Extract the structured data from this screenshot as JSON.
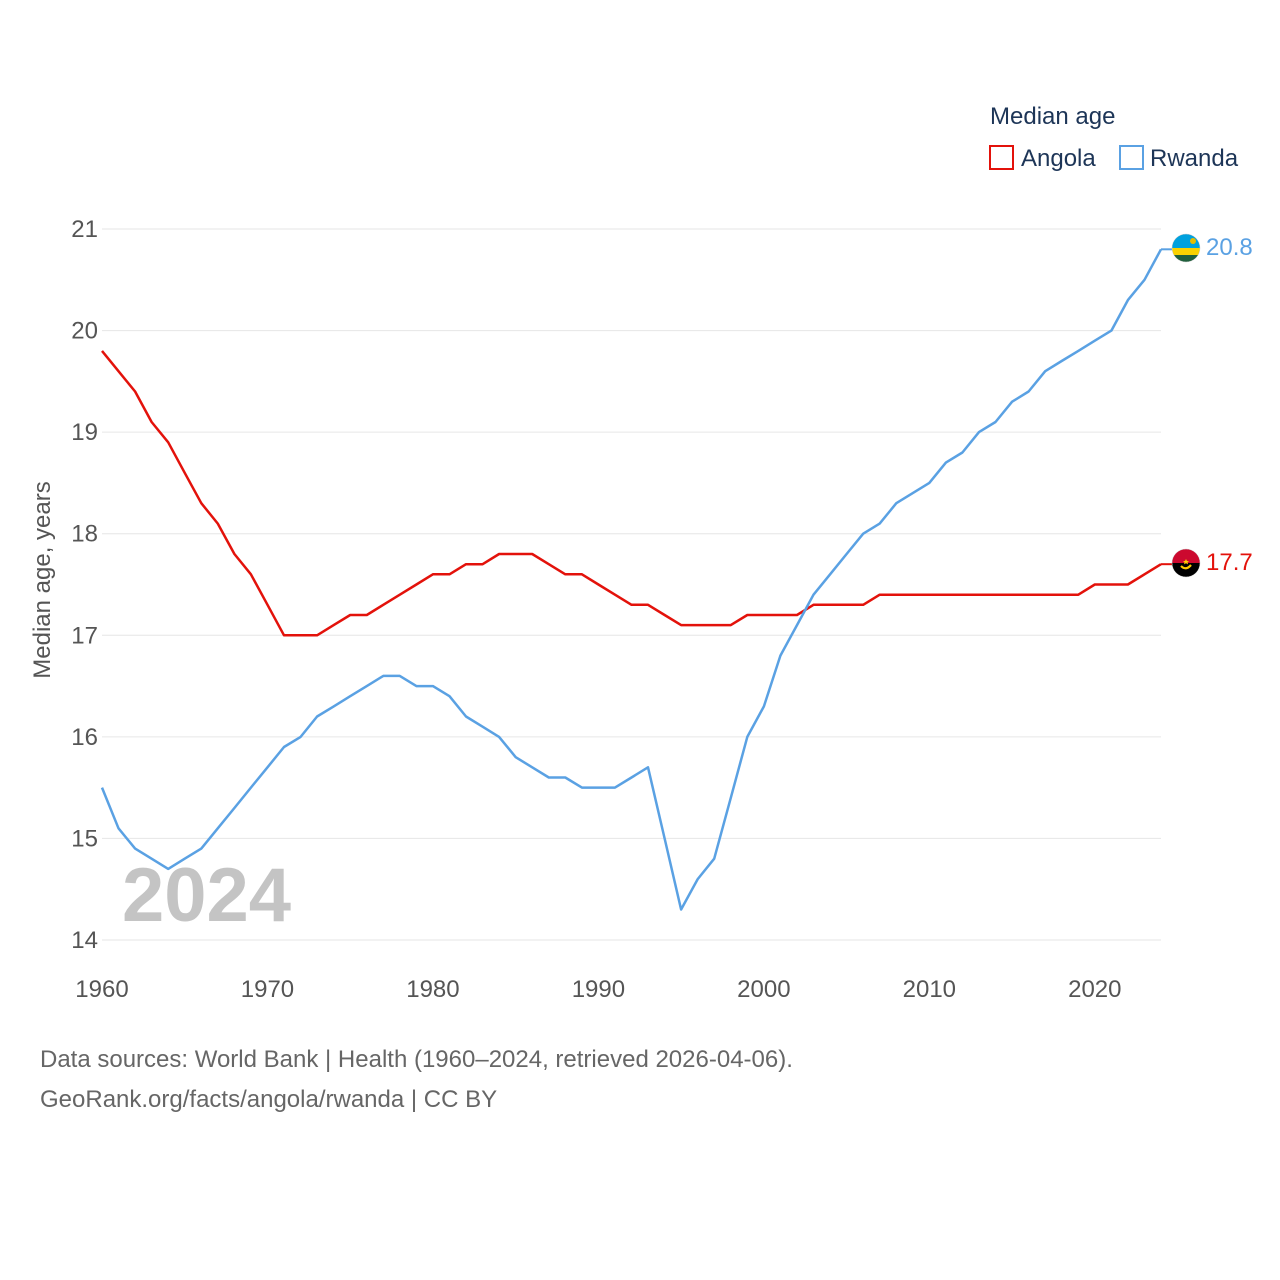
{
  "chart_data": {
    "type": "line",
    "title": "",
    "legend_title": "Median age",
    "ylabel": "Median age, years",
    "xlabel": "",
    "xlim": [
      1960,
      2024
    ],
    "ylim": [
      14,
      21
    ],
    "x_ticks": [
      "1960",
      "1970",
      "1980",
      "1990",
      "2000",
      "2010",
      "2020"
    ],
    "y_ticks": [
      "14",
      "15",
      "16",
      "17",
      "18",
      "19",
      "20",
      "21"
    ],
    "current_year": "2024",
    "x": [
      1960,
      1961,
      1962,
      1963,
      1964,
      1965,
      1966,
      1967,
      1968,
      1969,
      1970,
      1971,
      1972,
      1973,
      1974,
      1975,
      1976,
      1977,
      1978,
      1979,
      1980,
      1981,
      1982,
      1983,
      1984,
      1985,
      1986,
      1987,
      1988,
      1989,
      1990,
      1991,
      1992,
      1993,
      1994,
      1995,
      1996,
      1997,
      1998,
      1999,
      2000,
      2001,
      2002,
      2003,
      2004,
      2005,
      2006,
      2007,
      2008,
      2009,
      2010,
      2011,
      2012,
      2013,
      2014,
      2015,
      2016,
      2017,
      2018,
      2019,
      2020,
      2021,
      2022,
      2023,
      2024
    ],
    "series": [
      {
        "name": "Angola",
        "color": "#e3120b",
        "end_label": "17.7",
        "flag": "angola-flag-icon",
        "values": [
          19.8,
          19.6,
          19.4,
          19.1,
          18.9,
          18.6,
          18.3,
          18.1,
          17.8,
          17.6,
          17.3,
          17.0,
          17.0,
          17.0,
          17.1,
          17.2,
          17.2,
          17.3,
          17.4,
          17.5,
          17.6,
          17.6,
          17.7,
          17.7,
          17.8,
          17.8,
          17.8,
          17.7,
          17.6,
          17.6,
          17.5,
          17.4,
          17.3,
          17.3,
          17.2,
          17.1,
          17.1,
          17.1,
          17.1,
          17.2,
          17.2,
          17.2,
          17.2,
          17.3,
          17.3,
          17.3,
          17.3,
          17.4,
          17.4,
          17.4,
          17.4,
          17.4,
          17.4,
          17.4,
          17.4,
          17.4,
          17.4,
          17.4,
          17.4,
          17.4,
          17.5,
          17.5,
          17.5,
          17.6,
          17.7
        ]
      },
      {
        "name": "Rwanda",
        "color": "#5aa1e3",
        "end_label": "20.8",
        "flag": "rwanda-flag-icon",
        "values": [
          15.5,
          15.1,
          14.9,
          14.8,
          14.7,
          14.8,
          14.9,
          15.1,
          15.3,
          15.5,
          15.7,
          15.9,
          16.0,
          16.2,
          16.3,
          16.4,
          16.5,
          16.6,
          16.6,
          16.5,
          16.5,
          16.4,
          16.2,
          16.1,
          16.0,
          15.8,
          15.7,
          15.6,
          15.6,
          15.5,
          15.5,
          15.5,
          15.6,
          15.7,
          15.0,
          14.3,
          14.6,
          14.8,
          15.4,
          16.0,
          16.3,
          16.8,
          17.1,
          17.4,
          17.6,
          17.8,
          18.0,
          18.1,
          18.3,
          18.4,
          18.5,
          18.7,
          18.8,
          19.0,
          19.1,
          19.3,
          19.4,
          19.6,
          19.7,
          19.8,
          19.9,
          20.0,
          20.3,
          20.5,
          20.8
        ]
      }
    ]
  },
  "footer": {
    "source_line": "Data sources: World Bank | Health (1960–2024, retrieved 2026-04-06).",
    "credit_line": "GeoRank.org/facts/angola/rwanda | CC BY"
  }
}
